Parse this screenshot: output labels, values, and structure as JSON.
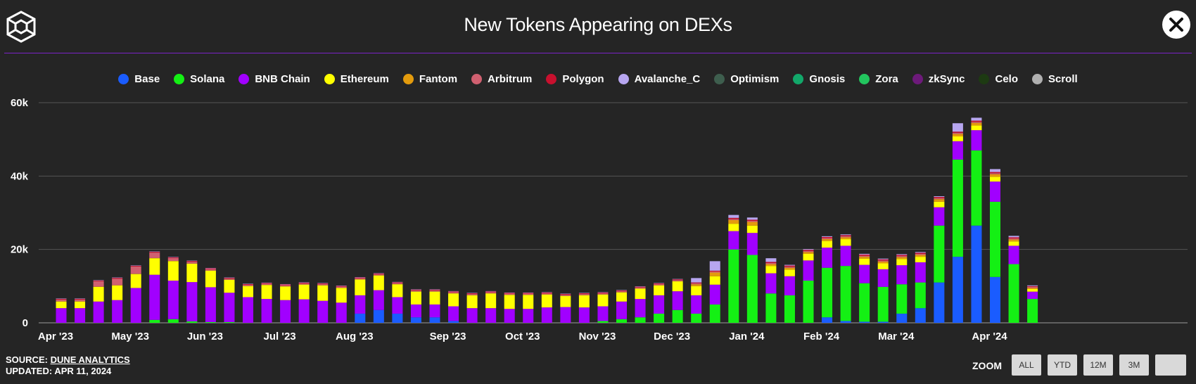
{
  "header": {
    "title": "New Tokens Appearing on DEXs",
    "logo_icon": "cube-logo-icon",
    "close_icon": "close-icon"
  },
  "legend": [
    {
      "label": "Base",
      "color": "#1a5cff"
    },
    {
      "label": "Solana",
      "color": "#14f014"
    },
    {
      "label": "BNB Chain",
      "color": "#a100ff"
    },
    {
      "label": "Ethereum",
      "color": "#ffff00"
    },
    {
      "label": "Fantom",
      "color": "#e39b0d"
    },
    {
      "label": "Arbitrum",
      "color": "#d06070"
    },
    {
      "label": "Polygon",
      "color": "#c8102e"
    },
    {
      "label": "Avalanche_C",
      "color": "#b7a6f0"
    },
    {
      "label": "Optimism",
      "color": "#3e5e4e"
    },
    {
      "label": "Gnosis",
      "color": "#12a86a"
    },
    {
      "label": "Zora",
      "color": "#22c55e"
    },
    {
      "label": "zkSync",
      "color": "#6d1a7a"
    },
    {
      "label": "Celo",
      "color": "#1d3a12"
    },
    {
      "label": "Scroll",
      "color": "#b0b0b0"
    }
  ],
  "chart_data": {
    "type": "bar",
    "stacked": true,
    "title": "New Tokens Appearing on DEXs",
    "ylim": [
      0,
      60000
    ],
    "y_ticks": [
      "0",
      "20k",
      "40k",
      "60k"
    ],
    "x_tick_labels": [
      "Apr '23",
      "May '23",
      "Jun '23",
      "Jul '23",
      "Aug '23",
      "Sep '23",
      "Oct '23",
      "Nov '23",
      "Dec '23",
      "Jan '24",
      "Feb '24",
      "Mar '24",
      "Apr '24"
    ],
    "x_tick_week_index": [
      0,
      4,
      8,
      12,
      16,
      21,
      25,
      29,
      33,
      37,
      41,
      45,
      50
    ],
    "weeks": 53,
    "series": [
      {
        "name": "Base",
        "values": [
          0,
          0,
          0,
          0,
          0,
          0,
          0,
          0,
          0,
          0,
          0,
          0,
          0,
          0,
          0,
          0,
          2500,
          3500,
          2500,
          1500,
          1500,
          500,
          0,
          0,
          0,
          0,
          0,
          0,
          0,
          0,
          0,
          0,
          0,
          0,
          0,
          0,
          0,
          0,
          0,
          0,
          0,
          1500,
          500,
          300,
          300,
          2500,
          4000,
          11000,
          18000,
          26500,
          12500,
          0,
          0
        ]
      },
      {
        "name": "Solana",
        "values": [
          0,
          0,
          0,
          0,
          0,
          800,
          1000,
          400,
          200,
          200,
          0,
          0,
          0,
          0,
          0,
          0,
          0,
          0,
          0,
          0,
          0,
          0,
          0,
          0,
          0,
          0,
          0,
          0,
          0,
          500,
          1000,
          1500,
          2500,
          3500,
          2500,
          5000,
          20000,
          18500,
          8000,
          7500,
          11500,
          13500,
          15000,
          10500,
          9500,
          8000,
          7000,
          15500,
          26500,
          20500,
          20500,
          16000,
          6500
        ]
      },
      {
        "name": "BNB Chain",
        "values": [
          4000,
          4000,
          5800,
          6200,
          9500,
          12300,
          10500,
          10700,
          9500,
          8000,
          7000,
          6500,
          6200,
          6400,
          6000,
          5500,
          5000,
          5400,
          4500,
          3500,
          3500,
          4000,
          4000,
          4000,
          3800,
          3800,
          4200,
          4300,
          4200,
          4000,
          4800,
          5000,
          5000,
          5100,
          5000,
          5400,
          5000,
          6000,
          5500,
          5200,
          5500,
          5500,
          5500,
          5000,
          4800,
          5200,
          5500,
          5000,
          5000,
          5500,
          5500,
          5000,
          2000
        ]
      },
      {
        "name": "Ethereum",
        "values": [
          1800,
          1800,
          4000,
          4000,
          3800,
          4500,
          5300,
          5000,
          4500,
          3500,
          3000,
          3800,
          3700,
          4000,
          4200,
          4000,
          4300,
          4000,
          3500,
          3500,
          3500,
          3500,
          3500,
          4000,
          3800,
          3800,
          3500,
          3000,
          3300,
          3200,
          2500,
          2800,
          2700,
          2700,
          2500,
          2300,
          2000,
          2000,
          2000,
          1800,
          1800,
          1800,
          1800,
          1700,
          1600,
          1700,
          1500,
          1500,
          1300,
          1300,
          1300,
          1200,
          700
        ]
      },
      {
        "name": "Fantom",
        "values": [
          50,
          50,
          50,
          50,
          50,
          50,
          50,
          50,
          50,
          50,
          50,
          50,
          50,
          50,
          50,
          50,
          50,
          50,
          50,
          50,
          50,
          50,
          50,
          50,
          50,
          50,
          50,
          50,
          50,
          50,
          50,
          50,
          50,
          50,
          500,
          1000,
          1000,
          1000,
          500,
          500,
          500,
          500,
          500,
          500,
          500,
          500,
          500,
          700,
          700,
          700,
          700,
          500,
          300
        ]
      },
      {
        "name": "Arbitrum",
        "values": [
          500,
          500,
          1500,
          1800,
          2000,
          1500,
          800,
          500,
          400,
          300,
          300,
          300,
          300,
          300,
          300,
          300,
          300,
          300,
          300,
          300,
          300,
          300,
          300,
          300,
          300,
          300,
          300,
          300,
          300,
          300,
          300,
          300,
          300,
          300,
          300,
          300,
          300,
          300,
          300,
          300,
          300,
          300,
          300,
          300,
          300,
          300,
          300,
          300,
          300,
          300,
          300,
          300,
          300
        ]
      },
      {
        "name": "Polygon",
        "values": [
          200,
          200,
          200,
          200,
          200,
          200,
          200,
          200,
          200,
          200,
          200,
          200,
          200,
          200,
          200,
          200,
          200,
          200,
          200,
          200,
          200,
          200,
          200,
          200,
          200,
          200,
          200,
          200,
          200,
          200,
          200,
          200,
          200,
          200,
          200,
          200,
          300,
          300,
          300,
          300,
          300,
          300,
          300,
          300,
          300,
          300,
          300,
          300,
          300,
          300,
          300,
          300,
          200
        ]
      },
      {
        "name": "Avalanche_C",
        "values": [
          100,
          100,
          100,
          100,
          100,
          100,
          100,
          100,
          100,
          100,
          100,
          100,
          100,
          100,
          100,
          100,
          100,
          100,
          100,
          100,
          100,
          100,
          100,
          100,
          100,
          100,
          100,
          100,
          100,
          100,
          100,
          100,
          100,
          100,
          1200,
          2600,
          800,
          600,
          1000,
          200,
          200,
          200,
          200,
          200,
          200,
          200,
          200,
          200,
          2300,
          800,
          800,
          400,
          200
        ]
      },
      {
        "name": "Optimism",
        "values": [
          0,
          0,
          0,
          0,
          0,
          0,
          0,
          0,
          0,
          0,
          0,
          0,
          0,
          0,
          0,
          0,
          0,
          0,
          0,
          0,
          0,
          0,
          0,
          0,
          0,
          0,
          0,
          0,
          0,
          0,
          0,
          0,
          0,
          0,
          0,
          0,
          0,
          0,
          0,
          0,
          0,
          0,
          0,
          0,
          0,
          0,
          0,
          0,
          0,
          0,
          0,
          0,
          0
        ]
      },
      {
        "name": "Gnosis",
        "values": [
          0,
          0,
          0,
          0,
          0,
          0,
          0,
          0,
          0,
          0,
          0,
          0,
          0,
          0,
          0,
          0,
          0,
          0,
          0,
          0,
          0,
          0,
          0,
          0,
          0,
          0,
          0,
          0,
          0,
          0,
          0,
          0,
          0,
          0,
          0,
          0,
          0,
          0,
          0,
          0,
          0,
          0,
          0,
          0,
          0,
          0,
          0,
          0,
          0,
          0,
          0,
          0,
          0
        ]
      },
      {
        "name": "Zora",
        "values": [
          0,
          0,
          0,
          0,
          0,
          0,
          0,
          0,
          0,
          0,
          0,
          0,
          0,
          0,
          0,
          0,
          0,
          0,
          0,
          0,
          0,
          0,
          0,
          0,
          0,
          0,
          0,
          0,
          0,
          0,
          0,
          0,
          0,
          0,
          0,
          0,
          0,
          0,
          0,
          0,
          0,
          0,
          0,
          0,
          0,
          0,
          0,
          0,
          0,
          0,
          0,
          0,
          0
        ]
      },
      {
        "name": "zkSync",
        "values": [
          0,
          0,
          0,
          0,
          0,
          0,
          0,
          0,
          0,
          0,
          0,
          0,
          0,
          0,
          0,
          0,
          0,
          0,
          0,
          0,
          0,
          0,
          0,
          0,
          0,
          0,
          0,
          0,
          0,
          0,
          0,
          0,
          0,
          0,
          0,
          0,
          0,
          0,
          0,
          0,
          0,
          0,
          0,
          0,
          0,
          0,
          0,
          0,
          0,
          0,
          0,
          0,
          0
        ]
      },
      {
        "name": "Celo",
        "values": [
          0,
          0,
          0,
          0,
          0,
          0,
          0,
          0,
          0,
          0,
          0,
          0,
          0,
          0,
          0,
          0,
          0,
          0,
          0,
          0,
          0,
          0,
          0,
          0,
          0,
          0,
          0,
          0,
          0,
          0,
          0,
          0,
          0,
          0,
          0,
          0,
          0,
          0,
          0,
          0,
          0,
          0,
          0,
          0,
          0,
          0,
          0,
          0,
          0,
          0,
          0,
          0,
          0
        ]
      },
      {
        "name": "Scroll",
        "values": [
          0,
          0,
          0,
          0,
          0,
          0,
          0,
          0,
          0,
          0,
          0,
          0,
          0,
          0,
          0,
          0,
          0,
          0,
          0,
          0,
          0,
          0,
          0,
          0,
          0,
          0,
          0,
          0,
          0,
          0,
          0,
          0,
          0,
          0,
          0,
          0,
          0,
          0,
          0,
          0,
          0,
          0,
          0,
          0,
          0,
          0,
          0,
          0,
          0,
          0,
          0,
          0,
          0
        ]
      }
    ],
    "grid": true
  },
  "footer": {
    "source_prefix": "SOURCE: ",
    "source_link": "DUNE ANALYTICS",
    "updated": "UPDATED: APR 11, 2024",
    "zoom_label": "ZOOM",
    "zoom_buttons": [
      "ALL",
      "YTD",
      "12M",
      "3M",
      ""
    ]
  }
}
